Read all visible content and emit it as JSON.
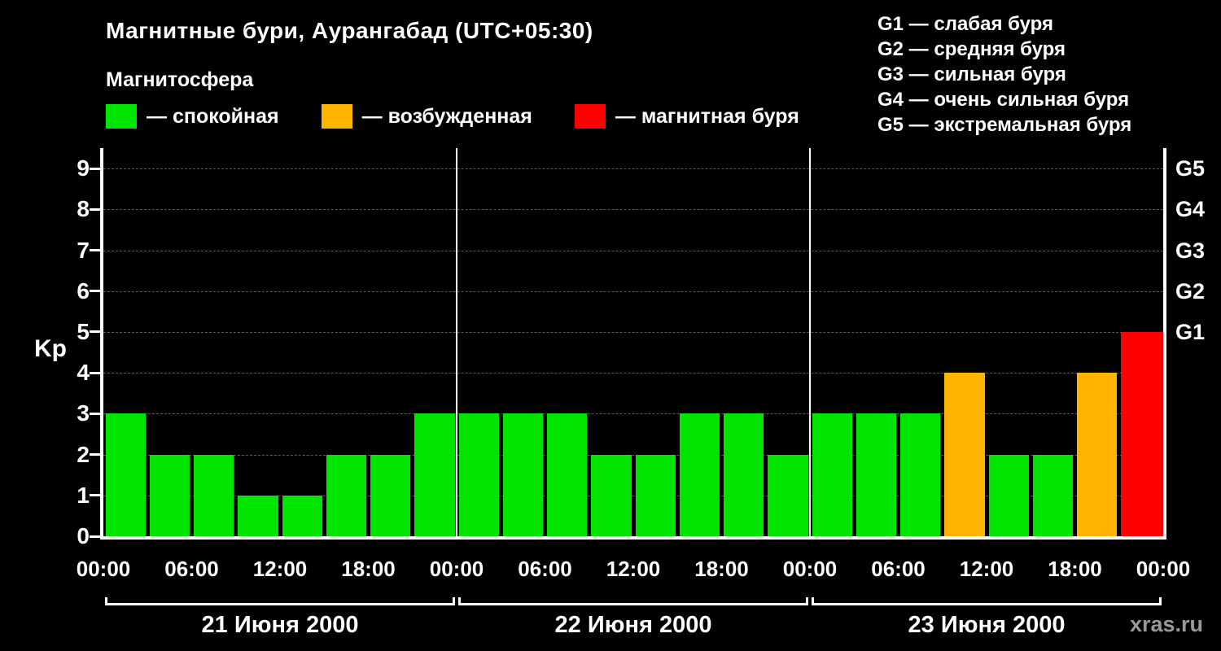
{
  "title": "Магнитные бури, Аурангабад (UTC+05:30)",
  "legend": {
    "heading": "Магнитосфера",
    "items": [
      {
        "name": "quiet",
        "color": "#00e400",
        "label": "— спокойная"
      },
      {
        "name": "excited",
        "color": "#ffb400",
        "label": "— возбужденная"
      },
      {
        "name": "storm",
        "color": "#ff0000",
        "label": "— магнитная буря"
      }
    ]
  },
  "storm_scale": [
    "G1 — слабая буря",
    "G2 — средняя буря",
    "G3 — сильная буря",
    "G4 — очень сильная буря",
    "G5 — экстремальная буря"
  ],
  "watermark": "xras.ru",
  "chart_data": {
    "type": "bar",
    "title": "Магнитные бури, Аурангабад (UTC+05:30)",
    "ylabel": "Kp",
    "ylim": [
      0,
      9.5
    ],
    "yticks": [
      0,
      1,
      2,
      3,
      4,
      5,
      6,
      7,
      8,
      9
    ],
    "grid": "dashed horizontal at each Kp level",
    "right_axis": [
      {
        "label": "G1",
        "value": 5
      },
      {
        "label": "G2",
        "value": 6
      },
      {
        "label": "G3",
        "value": 7
      },
      {
        "label": "G4",
        "value": 8
      },
      {
        "label": "G5",
        "value": 9
      }
    ],
    "x_tick_labels": [
      "00:00",
      "06:00",
      "12:00",
      "18:00",
      "00:00",
      "06:00",
      "12:00",
      "18:00",
      "00:00",
      "06:00",
      "12:00",
      "18:00",
      "00:00"
    ],
    "interval_hours": 3,
    "days": [
      {
        "date": "21 Июня 2000",
        "values": [
          3,
          2,
          2,
          1,
          1,
          2,
          2,
          3
        ]
      },
      {
        "date": "22 Июня 2000",
        "values": [
          3,
          3,
          3,
          2,
          2,
          3,
          3,
          2
        ]
      },
      {
        "date": "23 Июня 2000",
        "values": [
          3,
          3,
          3,
          4,
          2,
          2,
          4,
          5
        ]
      }
    ],
    "next_partial_bar": {
      "value": 5
    },
    "colors": {
      "quiet": "#00e400",
      "excited": "#ffb400",
      "storm": "#ff0000",
      "grid": "#5a5a5a",
      "axis": "#ffffff"
    },
    "color_thresholds": {
      "excited_min": 4,
      "storm_min": 5
    }
  }
}
